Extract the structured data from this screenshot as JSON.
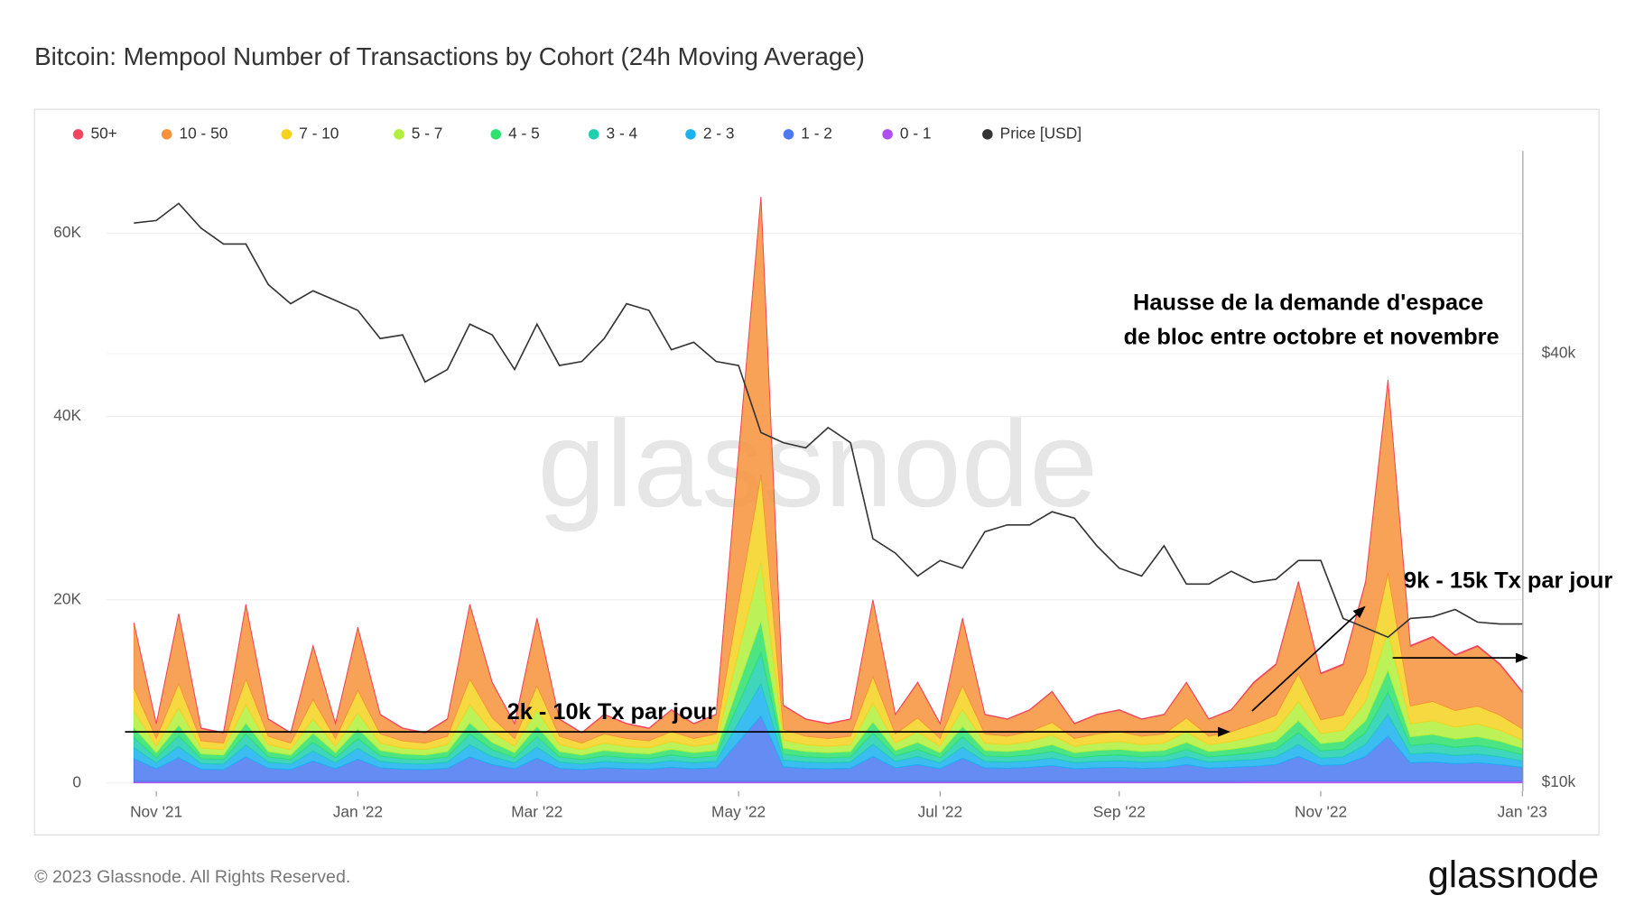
{
  "chart_data": {
    "type": "stacked-area",
    "title": "Bitcoin: Mempool Number of Transactions by Cohort (24h Moving Average)",
    "watermark": "glassnode",
    "footer": "© 2023 Glassnode. All Rights Reserved.",
    "logo": "glassnode",
    "annotations": [
      "Hausse de la demande d'espace",
      "de bloc entre octobre et novembre",
      "2k - 10k Tx par jour",
      "9k - 15k Tx par jour"
    ],
    "categories": [
      null,
      "Nov '21",
      null,
      null,
      null,
      null,
      null,
      null,
      null,
      null,
      "Jan '22",
      null,
      null,
      null,
      null,
      null,
      null,
      null,
      "Mar '22",
      null,
      null,
      null,
      null,
      null,
      null,
      null,
      null,
      "May '22",
      null,
      null,
      null,
      null,
      null,
      null,
      null,
      null,
      "Jul '22",
      null,
      null,
      null,
      null,
      null,
      null,
      null,
      "Sep '22",
      null,
      null,
      null,
      null,
      null,
      null,
      null,
      null,
      "Nov '22",
      null,
      null,
      null,
      null,
      null,
      null,
      null,
      null,
      "Jan '23"
    ],
    "ylim": [
      -900,
      69000
    ],
    "yticks": [
      {
        "value": 0,
        "label": "0"
      },
      {
        "value": 20000,
        "label": "20K"
      },
      {
        "value": 40000,
        "label": "40K"
      },
      {
        "value": 60000,
        "label": "60K"
      }
    ],
    "y2lim": [
      9730,
      77000
    ],
    "y2ticks": [
      {
        "value": 10000,
        "label": "$10k"
      },
      {
        "value": 40000,
        "label": "$40k"
      }
    ],
    "y2log": true,
    "grid": true,
    "series": [
      {
        "name": "50+",
        "color": "#f0455e",
        "values": [
          50,
          50,
          50,
          50,
          50,
          50,
          50,
          50,
          50,
          50,
          50,
          50,
          50,
          50,
          50,
          50,
          50,
          50,
          50,
          50,
          50,
          50,
          50,
          50,
          50,
          50,
          50,
          50,
          50,
          50,
          50,
          50,
          50,
          50,
          50,
          50,
          50,
          50,
          50,
          50,
          50,
          50,
          50,
          50,
          50,
          50,
          50,
          50,
          50,
          50,
          100,
          100,
          100,
          100,
          100,
          100,
          100,
          100,
          100,
          100,
          100,
          100,
          100
        ]
      },
      {
        "name": "10 - 50",
        "color": "#f7923a",
        "values": [
          7100,
          1600,
          7600,
          1350,
          1100,
          8100,
          1850,
          1100,
          5850,
          1600,
          6850,
          2100,
          1350,
          1100,
          1850,
          8100,
          3850,
          1600,
          7350,
          1850,
          1100,
          2100,
          1600,
          1350,
          2350,
          1600,
          2100,
          16350,
          30350,
          2600,
          1850,
          1600,
          1850,
          8350,
          2100,
          3850,
          1600,
          7350,
          2100,
          1850,
          2350,
          3350,
          1600,
          2100,
          2350,
          1850,
          2100,
          3850,
          1850,
          2350,
          4500,
          5500,
          10000,
          5000,
          5500,
          10000,
          21000,
          6500,
          7000,
          6000,
          6500,
          5500,
          4000
        ]
      },
      {
        "name": "7 - 10",
        "color": "#f5d21f",
        "values": [
          2500,
          850,
          2650,
          775,
          700,
          2800,
          925,
          700,
          2125,
          850,
          2425,
          1000,
          775,
          700,
          925,
          2800,
          1525,
          850,
          2575,
          925,
          700,
          1000,
          850,
          775,
          1075,
          850,
          1000,
          5275,
          9475,
          1150,
          925,
          850,
          925,
          2875,
          1000,
          1525,
          850,
          2575,
          1000,
          925,
          1075,
          1375,
          850,
          1000,
          1075,
          925,
          1000,
          1525,
          925,
          1075,
          1350,
          1650,
          3000,
          1500,
          1650,
          3000,
          6300,
          1950,
          2100,
          1800,
          1950,
          1650,
          1200
        ]
      },
      {
        "name": "5 - 7",
        "color": "#b0f03a",
        "values": [
          1800,
          700,
          1900,
          650,
          600,
          2000,
          750,
          600,
          1550,
          700,
          1750,
          800,
          650,
          600,
          750,
          2000,
          1150,
          700,
          1850,
          750,
          600,
          800,
          700,
          650,
          850,
          700,
          800,
          3650,
          6450,
          900,
          750,
          700,
          750,
          2050,
          800,
          1150,
          700,
          1850,
          800,
          750,
          850,
          1050,
          700,
          800,
          850,
          750,
          800,
          1150,
          750,
          850,
          1000,
          1200,
          2100,
          1100,
          1200,
          2100,
          4300,
          1400,
          1500,
          1300,
          1400,
          1200,
          900
        ]
      },
      {
        "name": "4 - 5",
        "color": "#2ee06e",
        "values": [
          1100,
          550,
          1150,
          525,
          500,
          1200,
          575,
          500,
          975,
          550,
          1075,
          600,
          525,
          500,
          575,
          1200,
          775,
          550,
          1125,
          575,
          500,
          600,
          550,
          525,
          625,
          550,
          600,
          2025,
          3425,
          650,
          575,
          550,
          575,
          1225,
          600,
          775,
          550,
          1125,
          600,
          575,
          625,
          725,
          550,
          600,
          625,
          575,
          600,
          775,
          575,
          625,
          750,
          850,
          1300,
          800,
          850,
          1300,
          2400,
          950,
          1000,
          900,
          950,
          850,
          700
        ]
      },
      {
        "name": "3 - 4",
        "color": "#1ecfb0",
        "values": [
          1100,
          550,
          1150,
          525,
          500,
          1200,
          575,
          500,
          975,
          550,
          1075,
          600,
          525,
          500,
          575,
          1200,
          775,
          550,
          1125,
          575,
          500,
          600,
          550,
          525,
          625,
          550,
          600,
          2025,
          3425,
          650,
          575,
          550,
          575,
          1225,
          600,
          775,
          550,
          1125,
          600,
          575,
          625,
          725,
          550,
          600,
          625,
          575,
          600,
          775,
          575,
          625,
          750,
          850,
          1300,
          800,
          850,
          1300,
          2400,
          950,
          1000,
          900,
          950,
          850,
          700
        ]
      },
      {
        "name": "2 - 3",
        "color": "#1ab2f0",
        "values": [
          1200,
          650,
          1250,
          625,
          600,
          1300,
          675,
          600,
          1075,
          650,
          1175,
          700,
          625,
          600,
          675,
          1300,
          875,
          650,
          1225,
          675,
          600,
          700,
          650,
          625,
          725,
          650,
          700,
          2125,
          3525,
          750,
          675,
          650,
          675,
          1325,
          700,
          875,
          650,
          1225,
          700,
          675,
          725,
          825,
          650,
          700,
          725,
          675,
          700,
          875,
          675,
          725,
          750,
          850,
          1300,
          800,
          850,
          1300,
          2400,
          950,
          1000,
          900,
          950,
          850,
          700
        ]
      },
      {
        "name": "1 - 2",
        "color": "#4a78f0",
        "values": [
          2500,
          1400,
          2600,
          1350,
          1300,
          2700,
          1450,
          1300,
          2250,
          1400,
          2450,
          1500,
          1350,
          1300,
          1450,
          2700,
          1850,
          1400,
          2550,
          1450,
          1300,
          1500,
          1400,
          1350,
          1550,
          1400,
          1500,
          4350,
          7150,
          1600,
          1450,
          1400,
          1450,
          2750,
          1500,
          1850,
          1400,
          2550,
          1500,
          1450,
          1550,
          1750,
          1400,
          1500,
          1550,
          1450,
          1500,
          1850,
          1450,
          1550,
          1600,
          1800,
          2700,
          1700,
          1800,
          2700,
          4900,
          2000,
          2100,
          1900,
          2000,
          1800,
          1500
        ]
      },
      {
        "name": "0 - 1",
        "color": "#b04ef0",
        "values": [
          150,
          150,
          150,
          150,
          150,
          150,
          150,
          150,
          150,
          150,
          150,
          150,
          150,
          150,
          150,
          150,
          150,
          150,
          150,
          150,
          150,
          150,
          150,
          150,
          150,
          150,
          150,
          150,
          150,
          150,
          150,
          150,
          150,
          150,
          150,
          150,
          150,
          150,
          150,
          150,
          150,
          150,
          150,
          150,
          150,
          150,
          150,
          150,
          150,
          150,
          200,
          200,
          200,
          200,
          200,
          200,
          200,
          200,
          200,
          200,
          200,
          200,
          200
        ]
      },
      {
        "name": "Price [USD]",
        "color": "#333333",
        "axis": "y2",
        "values": [
          61000,
          61500,
          65000,
          60000,
          57000,
          57000,
          50000,
          47000,
          49000,
          47500,
          46000,
          42000,
          42500,
          36500,
          38000,
          44000,
          42500,
          38000,
          44000,
          38500,
          39000,
          42000,
          47000,
          46000,
          40500,
          41500,
          39000,
          38500,
          31000,
          30000,
          29500,
          31500,
          30000,
          22000,
          21000,
          19500,
          20500,
          20000,
          22500,
          23000,
          23000,
          24000,
          23500,
          21500,
          20000,
          19500,
          21500,
          19000,
          19000,
          19800,
          19100,
          19300,
          20500,
          20500,
          17000,
          16500,
          16000,
          17000,
          17100,
          17500,
          16800,
          16700,
          16700
        ]
      }
    ]
  }
}
